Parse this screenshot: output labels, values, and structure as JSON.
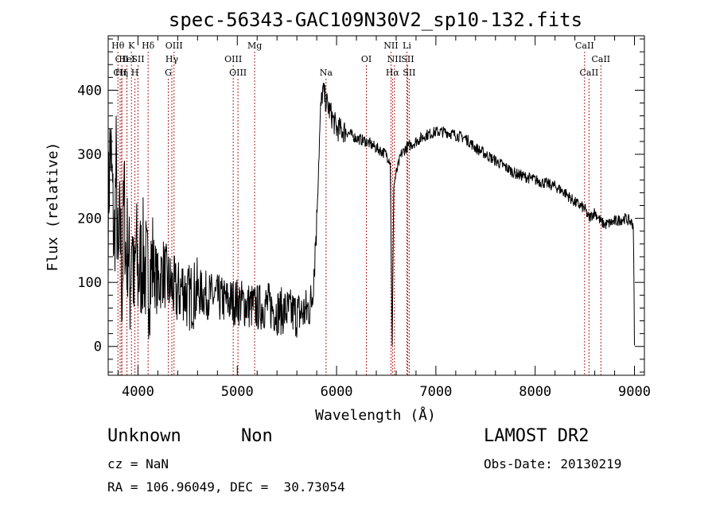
{
  "chart_data": {
    "type": "line",
    "title": "spec-56343-GAC109N30V2_sp10-132.fits",
    "xlabel": "Wavelength (Å)",
    "ylabel": "Flux (relative)",
    "xlim": [
      3700,
      9100
    ],
    "ylim": [
      -45,
      485
    ],
    "xticks": [
      4000,
      5000,
      6000,
      7000,
      8000,
      9000
    ],
    "yticks": [
      0,
      100,
      200,
      300,
      400
    ],
    "grid": false,
    "series": [
      {
        "x": [
          3700,
          3720,
          3740,
          3760,
          3780,
          3800,
          3820,
          3840,
          3860,
          3880,
          3900,
          3920,
          3940,
          3960,
          3980,
          4000,
          4050,
          4100,
          4150,
          4200,
          4250,
          4300,
          4350,
          4400,
          4450,
          4500,
          4600,
          4700,
          4800,
          4900,
          5000,
          5100,
          5200,
          5300,
          5400,
          5500,
          5600,
          5700,
          5750,
          5780,
          5800,
          5820,
          5840,
          5860,
          5900,
          5950,
          6000,
          6100,
          6200,
          6300,
          6400,
          6500,
          6540,
          6560,
          6575,
          6600,
          6650,
          6700,
          6800,
          6900,
          7000,
          7100,
          7200,
          7300,
          7400,
          7500,
          7600,
          7700,
          7800,
          7900,
          8000,
          8100,
          8200,
          8300,
          8400,
          8500,
          8540,
          8600,
          8660,
          8700,
          8800,
          8900,
          8960,
          8990,
          9000
        ],
        "y": [
          200,
          320,
          250,
          150,
          280,
          100,
          200,
          80,
          240,
          130,
          170,
          90,
          190,
          70,
          160,
          110,
          140,
          100,
          130,
          95,
          120,
          100,
          90,
          80,
          95,
          75,
          85,
          80,
          75,
          70,
          70,
          65,
          60,
          65,
          55,
          55,
          50,
          55,
          70,
          140,
          200,
          290,
          370,
          400,
          380,
          360,
          340,
          335,
          325,
          320,
          310,
          300,
          290,
          0,
          250,
          270,
          300,
          310,
          320,
          330,
          335,
          335,
          330,
          325,
          310,
          300,
          290,
          280,
          270,
          265,
          260,
          255,
          250,
          240,
          225,
          215,
          200,
          210,
          195,
          190,
          195,
          200,
          195,
          190,
          0
        ]
      }
    ],
    "lines": [
      {
        "label": "Hθ",
        "x": 3798,
        "row": 1
      },
      {
        "label": "CII",
        "x": 3838,
        "row": 2
      },
      {
        "label": "K",
        "x": 3934,
        "row": 1
      },
      {
        "label": "HeI",
        "x": 3889,
        "row": 2
      },
      {
        "label": "SII",
        "x": 4000,
        "row": 2
      },
      {
        "label": "Hδ",
        "x": 4102,
        "row": 1
      },
      {
        "label": "CII",
        "x": 3820,
        "row": 3
      },
      {
        "label": "Hη",
        "x": 3835,
        "row": 3
      },
      {
        "label": "H",
        "x": 3969,
        "row": 3
      },
      {
        "label": "OIII",
        "x": 4363,
        "row": 1
      },
      {
        "label": "Hγ",
        "x": 4341,
        "row": 2
      },
      {
        "label": "G",
        "x": 4305,
        "row": 3
      },
      {
        "label": "OIII",
        "x": 4959,
        "row": 2
      },
      {
        "label": "OIII",
        "x": 5007,
        "row": 3
      },
      {
        "label": "Mg",
        "x": 5175,
        "row": 1
      },
      {
        "label": "Na",
        "x": 5894,
        "row": 3
      },
      {
        "label": "OI",
        "x": 6300,
        "row": 2
      },
      {
        "label": "NII",
        "x": 6548,
        "row": 1
      },
      {
        "label": "Li",
        "x": 6708,
        "row": 1
      },
      {
        "label": "NII",
        "x": 6583,
        "row": 2
      },
      {
        "label": "SII",
        "x": 6716,
        "row": 2
      },
      {
        "label": "Hα",
        "x": 6563,
        "row": 3
      },
      {
        "label": "SII",
        "x": 6731,
        "row": 3
      },
      {
        "label": "CaII",
        "x": 8498,
        "row": 1
      },
      {
        "label": "CaII",
        "x": 8662,
        "row": 2
      },
      {
        "label": "CaII",
        "x": 8542,
        "row": 3
      }
    ],
    "line_color": "#b22222",
    "spectrum_color": "#000000"
  },
  "info": {
    "class": "Unknown",
    "subclass": "Non",
    "survey": "LAMOST DR2",
    "cz": "cz = NaN",
    "obs_date": "Obs-Date: 20130219",
    "coords": "RA = 106.96049, DEC =  30.73054"
  }
}
